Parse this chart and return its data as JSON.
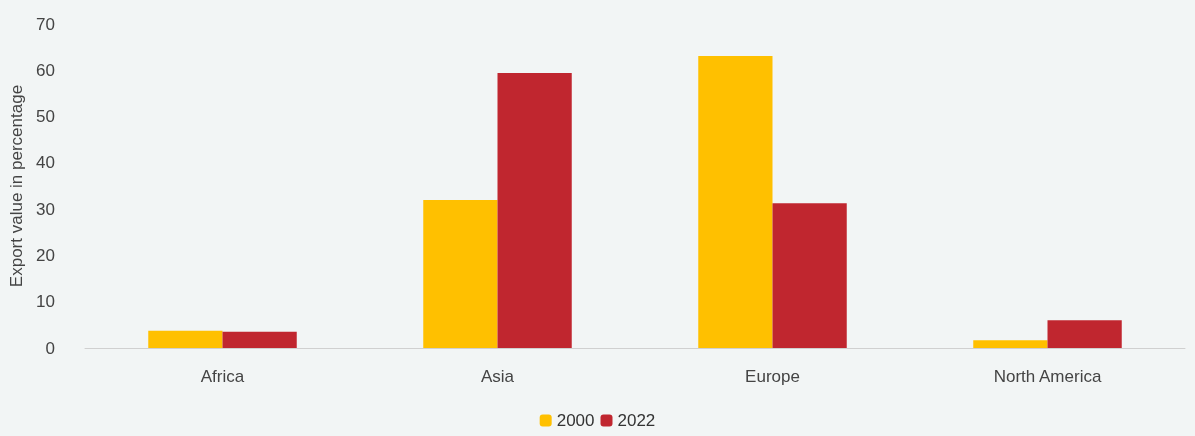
{
  "chart_data": {
    "type": "bar",
    "ylabel": "Export value in percentage",
    "categories": [
      "Africa",
      "Asia",
      "Europe",
      "North America"
    ],
    "series": [
      {
        "name": "2000",
        "color": "#ffc000",
        "values": [
          3.7,
          32.0,
          63.1,
          1.7
        ]
      },
      {
        "name": "2022",
        "color": "#c0262f",
        "values": [
          3.5,
          59.4,
          31.3,
          6.0
        ]
      }
    ],
    "ylim": [
      0,
      70
    ],
    "yticks": [
      0,
      10,
      20,
      30,
      40,
      50,
      60,
      70
    ],
    "grid": false,
    "legend": "bottom"
  }
}
